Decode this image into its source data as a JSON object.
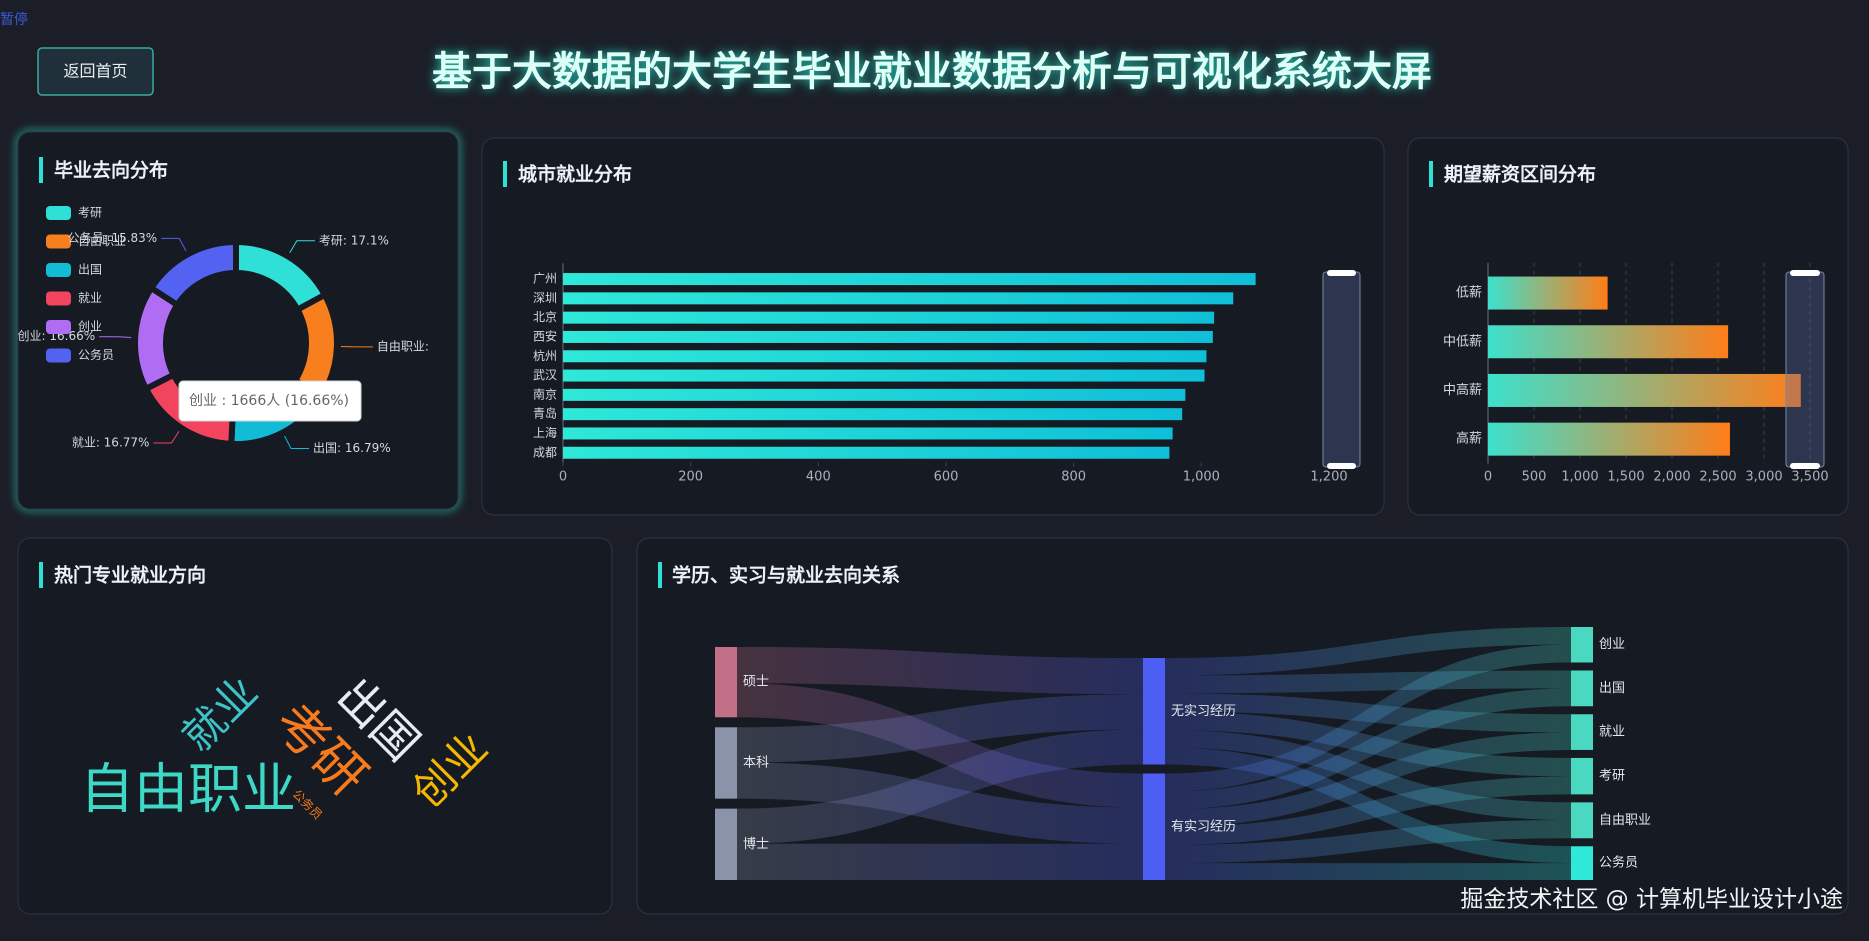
{
  "header": {
    "status": "暂停",
    "button": "返回首页",
    "title": "基于大数据的大学生毕业就业数据分析与可视化系统大屏",
    "watermark": "掘金技术社区 @ 计算机毕业设计小途"
  },
  "chart_data": [
    {
      "type": "pie",
      "title": "毕业去向分布",
      "categories": [
        "考研",
        "自由职业",
        "出国",
        "就业",
        "创业",
        "公务员"
      ],
      "values": [
        17.1,
        16.85,
        16.79,
        16.77,
        16.66,
        15.83
      ],
      "value_labels": [
        "考研: 17.1%",
        "自由职业:",
        "出国: 16.79%",
        "就业: 16.77%",
        "创业: 16.66%",
        "公务员: 15.83%"
      ],
      "colors": [
        "#2ee0d6",
        "#f77f1e",
        "#12bcd6",
        "#f2445e",
        "#b06cf2",
        "#5462f2"
      ],
      "tooltip": "创业 : 1666人 (16.66%)",
      "legend": "top-left"
    },
    {
      "type": "bar",
      "orientation": "horizontal",
      "title": "城市就业分布",
      "categories": [
        "广州",
        "深圳",
        "北京",
        "西安",
        "杭州",
        "武汉",
        "南京",
        "青岛",
        "上海",
        "成都"
      ],
      "values": [
        1085,
        1050,
        1020,
        1018,
        1008,
        1005,
        975,
        970,
        955,
        950
      ],
      "colors": [
        "#2ee8d8",
        "#0fbfd8"
      ],
      "xlim": [
        0,
        1200
      ],
      "xticks": [
        0,
        200,
        400,
        600,
        800,
        {
          "value": 1000,
          "label": "1,000"
        },
        {
          "value": 1200,
          "label": "1,200"
        }
      ],
      "grid": false
    },
    {
      "type": "bar",
      "orientation": "horizontal",
      "title": "期望薪资区间分布",
      "categories": [
        "低薪",
        "中低薪",
        "中高薪",
        "高薪"
      ],
      "values": [
        1300,
        2610,
        3400,
        2630
      ],
      "colors": [
        "#3de0cc",
        "#ff7d18"
      ],
      "xlim": [
        0,
        3500
      ],
      "xticks": [
        0,
        500,
        {
          "value": 1000,
          "label": "1,000"
        },
        {
          "value": 1500,
          "label": "1,500"
        },
        {
          "value": 2000,
          "label": "2,000"
        },
        {
          "value": 2500,
          "label": "2,500"
        },
        {
          "value": 3000,
          "label": "3,000"
        },
        {
          "value": 3500,
          "label": "3,500"
        }
      ],
      "grid": true
    },
    {
      "type": "wordcloud",
      "title": "热门专业就业方向",
      "words": [
        {
          "text": "自由职业",
          "color": "#3dd8c6"
        },
        {
          "text": "就业",
          "color": "#3cc4c8"
        },
        {
          "text": "考研",
          "color": "#f77a1c"
        },
        {
          "text": "出国",
          "color": "#e8ecf0"
        },
        {
          "text": "创业",
          "color": "#f5b800"
        },
        {
          "text": "公务员",
          "color": "#f77a1c"
        }
      ]
    },
    {
      "type": "sankey",
      "title": "学历、实习与就业去向关系",
      "nodes": [
        "硕士",
        "本科",
        "博士",
        "无实习经历",
        "有实习经历",
        "创业",
        "出国",
        "就业",
        "考研",
        "自由职业",
        "公务员"
      ],
      "node_colors": [
        "#c26f88",
        "#8a93a8",
        "#8a93a8",
        "#4f5ef2",
        "#4f5ef2",
        "#4ad8c0",
        "#4ad8c0",
        "#4ad8c0",
        "#4ad8c0",
        "#4ad8c0",
        "#2ee8d8"
      ],
      "links": [
        {
          "source": "硕士",
          "target": "无实习经历",
          "value": 1700
        },
        {
          "source": "硕士",
          "target": "有实习经历",
          "value": 1600
        },
        {
          "source": "本科",
          "target": "无实习经历",
          "value": 1650
        },
        {
          "source": "本科",
          "target": "有实习经历",
          "value": 1700
        },
        {
          "source": "博士",
          "target": "无实习经历",
          "value": 1650
        },
        {
          "source": "博士",
          "target": "有实习经历",
          "value": 1700
        },
        {
          "source": "无实习经历",
          "target": "创业",
          "value": 820
        },
        {
          "source": "无实习经历",
          "target": "出国",
          "value": 840
        },
        {
          "source": "无实习经历",
          "target": "就业",
          "value": 850
        },
        {
          "source": "无实习经历",
          "target": "考研",
          "value": 870
        },
        {
          "source": "无实习经历",
          "target": "自由职业",
          "value": 830
        },
        {
          "source": "无实习经历",
          "target": "公务员",
          "value": 790
        },
        {
          "source": "有实习经历",
          "target": "创业",
          "value": 846
        },
        {
          "source": "有实习经历",
          "target": "出国",
          "value": 839
        },
        {
          "source": "有实习经历",
          "target": "就业",
          "value": 826
        },
        {
          "source": "有实习经历",
          "target": "考研",
          "value": 840
        },
        {
          "source": "有实习经历",
          "target": "自由职业",
          "value": 855
        },
        {
          "source": "有实习经历",
          "target": "公务员",
          "value": 794
        }
      ]
    }
  ]
}
